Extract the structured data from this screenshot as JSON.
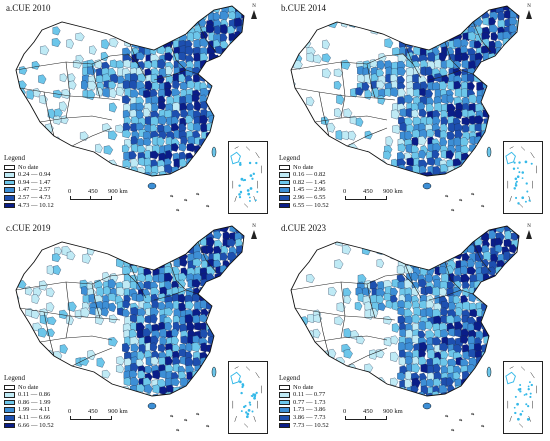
{
  "panels": [
    {
      "title": "a.CUE 2010",
      "bins": [
        "0.24 — 0.94",
        "0.94 — 1.47",
        "1.47 — 2.57",
        "2.57 — 4.73",
        "4.73 — 10.12"
      ]
    },
    {
      "title": "b.CUE 2014",
      "bins": [
        "0.16 — 0.82",
        "0.82 — 1.45",
        "1.45 — 2.96",
        "2.96 — 6.55",
        "6.55 — 10.52"
      ]
    },
    {
      "title": "c.CUE 2019",
      "bins": [
        "0.11 — 0.86",
        "0.86 — 1.99",
        "1.99 — 4.11",
        "4.11 — 6.66",
        "6.66 — 10.52"
      ]
    },
    {
      "title": "d.CUE 2023",
      "bins": [
        "0.11 — 0.77",
        "0.77 — 1.73",
        "1.73 — 3.86",
        "3.86 — 7.73",
        "7.73 — 10.52"
      ]
    }
  ],
  "legend_title": "Legend",
  "no_data_label": "No date",
  "north_label": "N",
  "scale": {
    "zero": "0",
    "mid": "450",
    "end": "900 km"
  },
  "colors": {
    "no_data": "#ffffff",
    "c1": "#bfeaf5",
    "c2": "#6cc6ea",
    "c3": "#3d8fd6",
    "c4": "#1d4fb0",
    "c5": "#0a1d88",
    "inset_islands": "#35b9e8"
  }
}
